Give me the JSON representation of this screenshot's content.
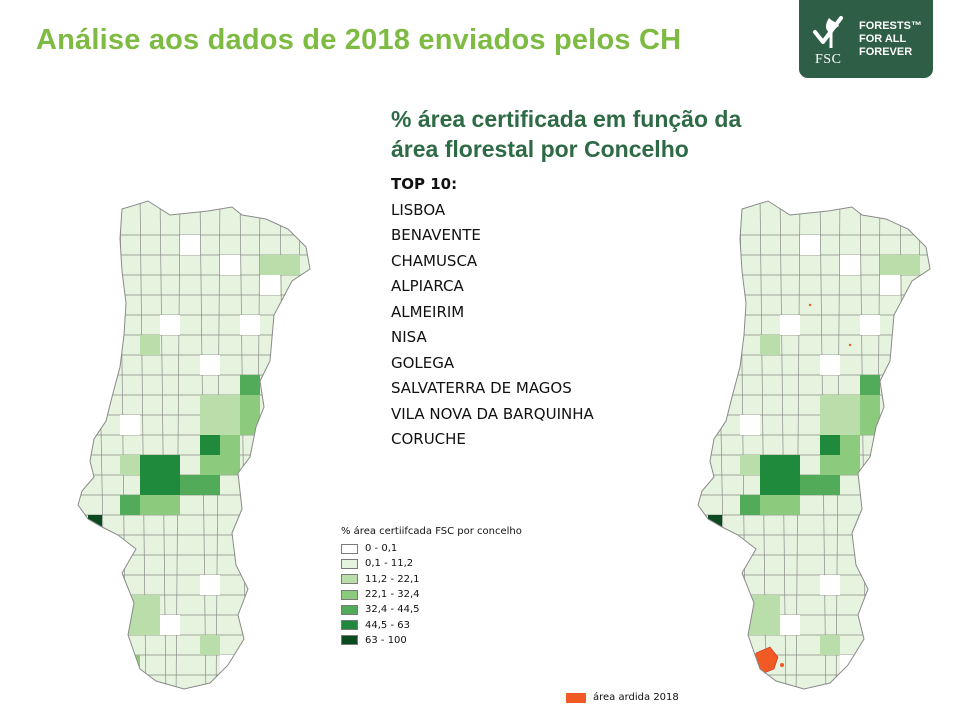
{
  "slide": {
    "title": "Análise aos dados de 2018 enviados pelos CH"
  },
  "logo": {
    "fsc": "FSC",
    "line1": "FORESTS™",
    "line2": "FOR ALL",
    "line3": "FOREVER"
  },
  "subtitle": {
    "line1": "% área certificada em função da",
    "line2": "área florestal por Concelho"
  },
  "top_list": {
    "heading": "TOP  10:",
    "items": [
      "LISBOA",
      "BENAVENTE",
      "CHAMUSCA",
      "ALPIARCA",
      "ALMEIRIM",
      "NISA",
      "GOLEGA",
      "SALVATERRA  DE MAGOS",
      "VILA NOVA DA BARQUINHA",
      "CORUCHE"
    ]
  },
  "legend": {
    "title": "% área certiifcada FSC por concelho",
    "classes": [
      {
        "label": "0 - 0,1",
        "color": "#ffffff"
      },
      {
        "label": "0,1 - 11,2",
        "color": "#e6f3de"
      },
      {
        "label": "11,2 - 22,1",
        "color": "#b9deaa"
      },
      {
        "label": "22,1 - 32,4",
        "color": "#8ccb7e"
      },
      {
        "label": "32,4 - 44,5",
        "color": "#52ab58"
      },
      {
        "label": "44,5 - 63",
        "color": "#1f8a3c"
      },
      {
        "label": "63 - 100",
        "color": "#0b4a20"
      }
    ]
  },
  "burned_legend": {
    "label": "área ardida 2018",
    "color": "#f15a24"
  },
  "map_border_color": "#8a8a8a"
}
